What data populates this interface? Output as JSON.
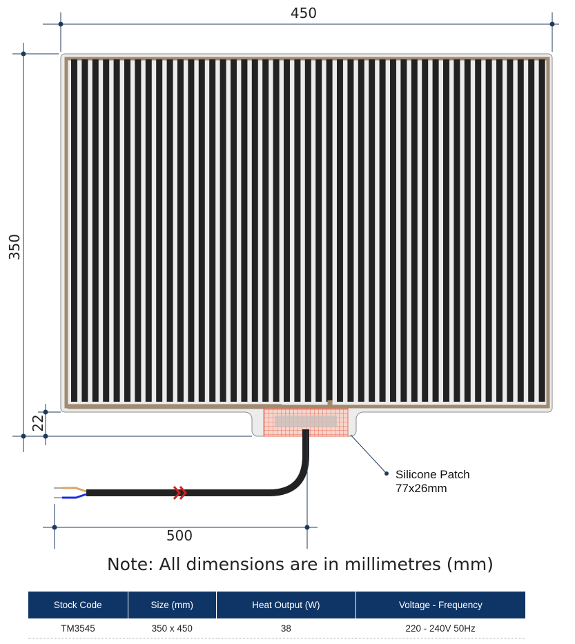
{
  "dimensions": {
    "width": "450",
    "height": "350",
    "tab_offset": "22",
    "cable_length": "500"
  },
  "callout": {
    "line1": "Silicone Patch",
    "line2": "77x26mm"
  },
  "note": "Note: All dimensions are in millimetres (mm)",
  "colors": {
    "element": "#222222",
    "busbar": "#a08a70",
    "patch": "#e86a50",
    "header": "#0f3566",
    "marker": "#cc2222"
  },
  "table": {
    "headers": [
      "Stock Code",
      "Size (mm)",
      "Heat Output (W)",
      "Voltage - Frequency"
    ],
    "rows": [
      [
        "TM3545",
        "350 x 450",
        "38",
        "220 - 240V 50Hz"
      ]
    ]
  }
}
